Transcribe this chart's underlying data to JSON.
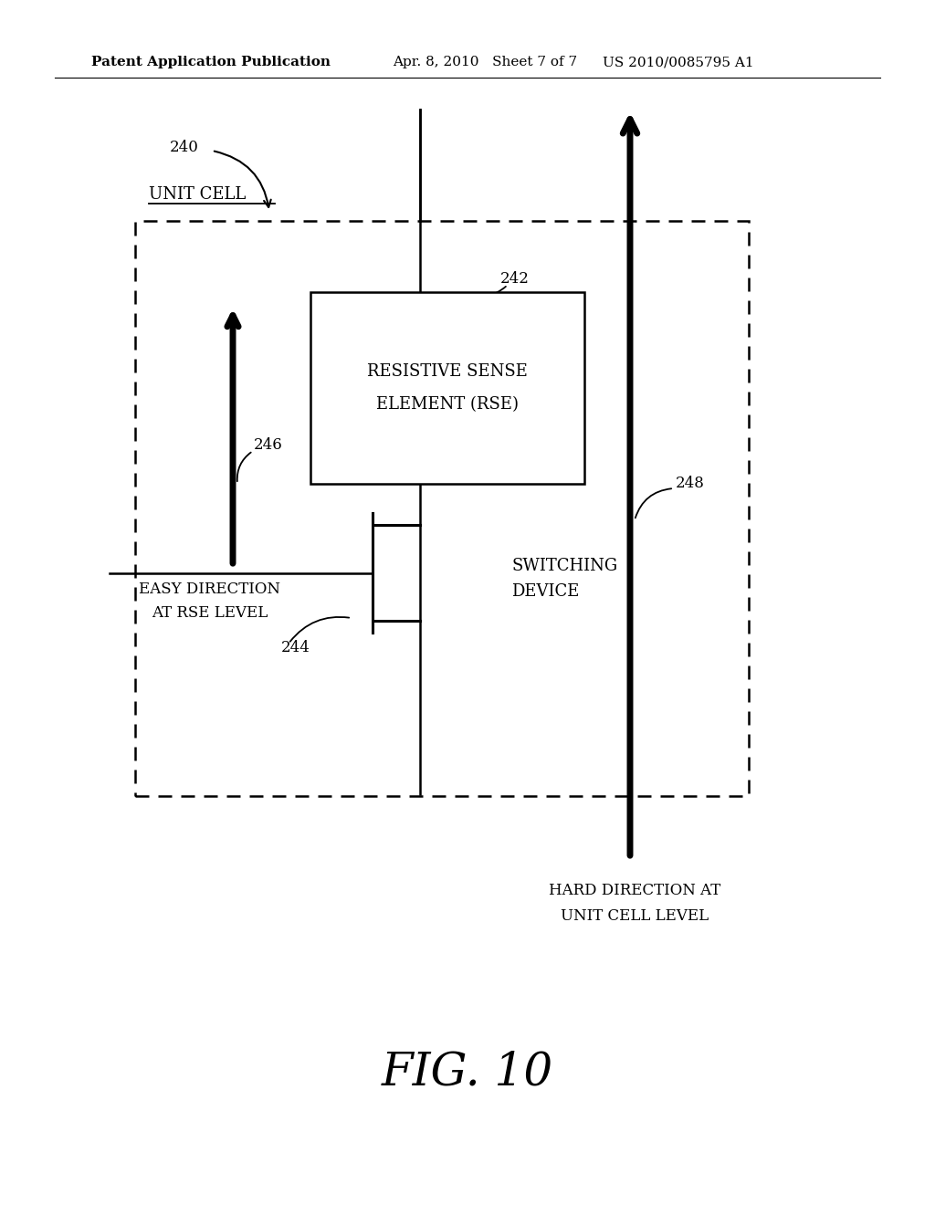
{
  "bg_color": "#ffffff",
  "line_color": "#000000",
  "header_left": "Patent Application Publication",
  "header_mid": "Apr. 8, 2010   Sheet 7 of 7",
  "header_right": "US 2010/0085795 A1",
  "figure_label": "FIG. 10",
  "label_240": "240",
  "label_242": "242",
  "label_244": "244",
  "label_246": "246",
  "label_248": "248",
  "unit_cell_label": "UNIT CELL",
  "rse_text_line1": "RESISTIVE SENSE",
  "rse_text_line2": "ELEMENT (RSE)",
  "switching_text_line1": "SWITCHING",
  "switching_text_line2": "DEVICE",
  "easy_direction_line1": "EASY DIRECTION",
  "easy_direction_line2": "AT RSE LEVEL",
  "hard_direction_line1": "HARD DIRECTION AT",
  "hard_direction_line2": "UNIT CELL LEVEL"
}
